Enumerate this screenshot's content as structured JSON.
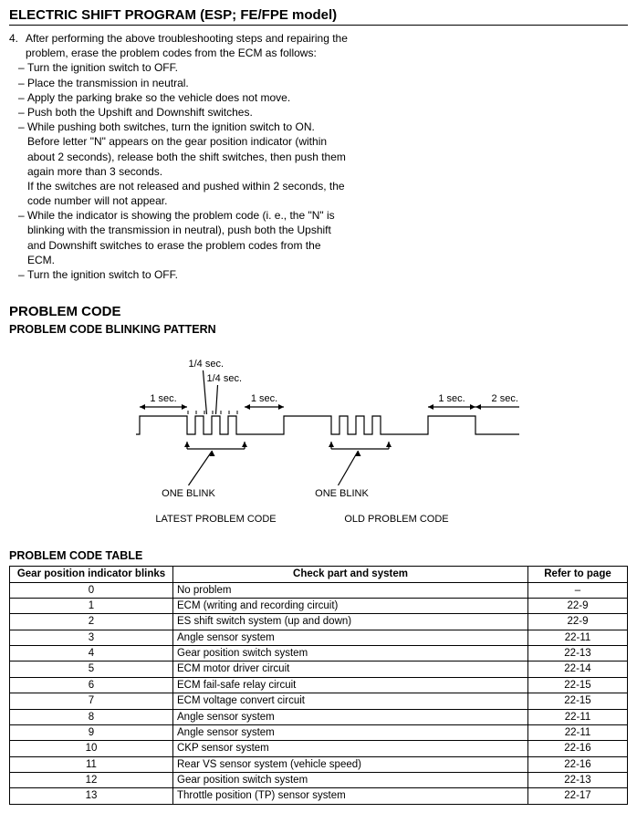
{
  "title": "ELECTRIC SHIFT PROGRAM (ESP; FE/FPE model)",
  "step": {
    "num": "4.",
    "lead1": "After performing the above troubleshooting steps and repairing the",
    "lead2": "problem, erase the problem codes from the ECM as follows:",
    "b1": "Turn the ignition switch to OFF.",
    "b2": "Place the transmission in neutral.",
    "b3": "Apply the parking brake so the vehicle does not move.",
    "b4": "Push both the Upshift and Downshift switches.",
    "b5": "While pushing both switches, turn the ignition switch to ON.",
    "b5a": "Before letter \"N\" appears on the gear position indicator (within",
    "b5b": "about 2 seconds), release both the shift switches, then push them",
    "b5c": "again more than 3 seconds.",
    "b5d": "If the switches are not released and pushed within 2 seconds, the",
    "b5e": "code number will not appear.",
    "b6a": "While the indicator is showing the problem code (i. e., the \"N\" is",
    "b6b": "blinking with the transmission in neutral), push both the Upshift",
    "b6c": "and Downshift switches to erase the problem codes from the",
    "b6d": "ECM.",
    "b7": "Turn the ignition switch to OFF."
  },
  "headings": {
    "h2": "PROBLEM CODE",
    "h3": "PROBLEM CODE BLINKING PATTERN",
    "tbl": "PROBLEM CODE TABLE"
  },
  "diagram": {
    "q1": "1/4 sec.",
    "q2": "1/4 sec.",
    "s1": "1 sec.",
    "s2": "1 sec.",
    "s3": "1 sec.",
    "s4": "2 sec.",
    "ob1": "ONE BLINK",
    "ob2": "ONE BLINK",
    "latest": "LATEST PROBLEM CODE",
    "old": "OLD PROBLEM CODE",
    "colors": {
      "line": "#000000",
      "bg": "#ffffff"
    },
    "line_width": 1.2,
    "font_family": "Arial, Helvetica, sans-serif",
    "label_fontsize": 11
  },
  "table": {
    "columns": [
      "Gear position indicator blinks",
      "Check part and system",
      "Refer to page"
    ],
    "rows": [
      [
        "0",
        "No problem",
        "–"
      ],
      [
        "1",
        "ECM (writing and recording circuit)",
        "22-9"
      ],
      [
        "2",
        "ES shift switch system (up and down)",
        "22-9"
      ],
      [
        "3",
        "Angle sensor system",
        "22-11"
      ],
      [
        "4",
        "Gear position switch system",
        "22-13"
      ],
      [
        "5",
        "ECM motor driver circuit",
        "22-14"
      ],
      [
        "6",
        "ECM fail-safe relay circuit",
        "22-15"
      ],
      [
        "7",
        "ECM voltage convert circuit",
        "22-15"
      ],
      [
        "8",
        "Angle sensor system",
        "22-11"
      ],
      [
        "9",
        "Angle sensor system",
        "22-11"
      ],
      [
        "10",
        "CKP sensor system",
        "22-16"
      ],
      [
        "11",
        "Rear VS sensor system (vehicle speed)",
        "22-16"
      ],
      [
        "12",
        "Gear position switch system",
        "22-13"
      ],
      [
        "13",
        "Throttle position (TP) sensor system",
        "22-17"
      ]
    ],
    "col_align": [
      "center",
      "left",
      "center"
    ],
    "border_color": "#000000",
    "header_bg": "#ffffff",
    "fontsize": 11.5
  }
}
